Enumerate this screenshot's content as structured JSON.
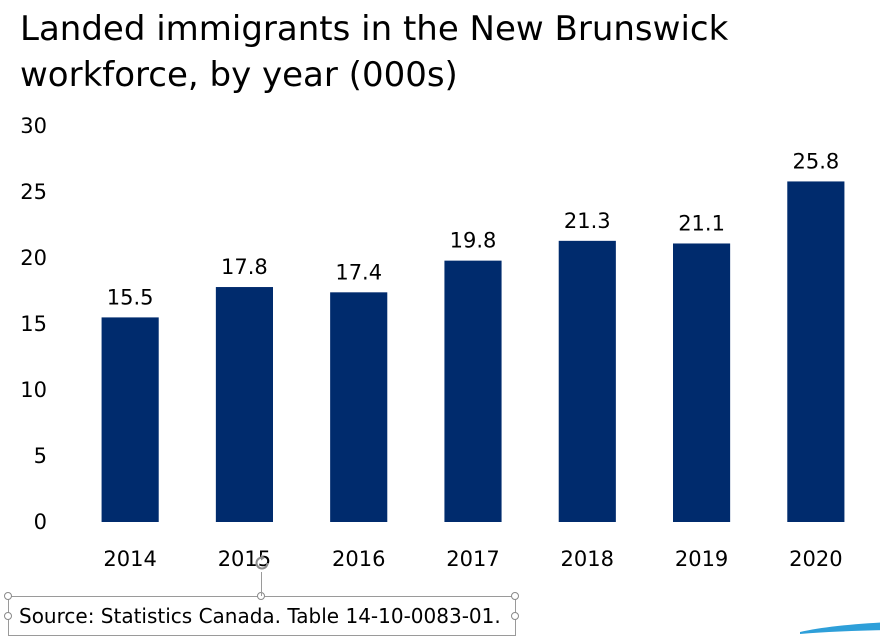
{
  "chart_data": {
    "type": "bar",
    "title": "Landed immigrants in the New Brunswick workforce, by year (000s)",
    "categories": [
      "2014",
      "2015",
      "2016",
      "2017",
      "2018",
      "2019",
      "2020"
    ],
    "values": [
      15.5,
      17.8,
      17.4,
      19.8,
      21.3,
      21.1,
      25.8
    ],
    "data_labels": [
      "15.5",
      "17.8",
      "17.4",
      "19.8",
      "21.3",
      "21.1",
      "25.8"
    ],
    "y_ticks": [
      "0",
      "5",
      "10",
      "15",
      "20",
      "25",
      "30"
    ],
    "ylim": [
      0,
      30
    ],
    "xlabel": "",
    "ylabel": "",
    "grid": false,
    "legend": "none",
    "bar_color": "#002B6D"
  },
  "source": "Source: Statistics Canada. Table 14-10-0083-01.",
  "colors": {
    "bar": "#002B6D",
    "handle": "#8a8a8a",
    "accent": "#2E9FD9"
  }
}
